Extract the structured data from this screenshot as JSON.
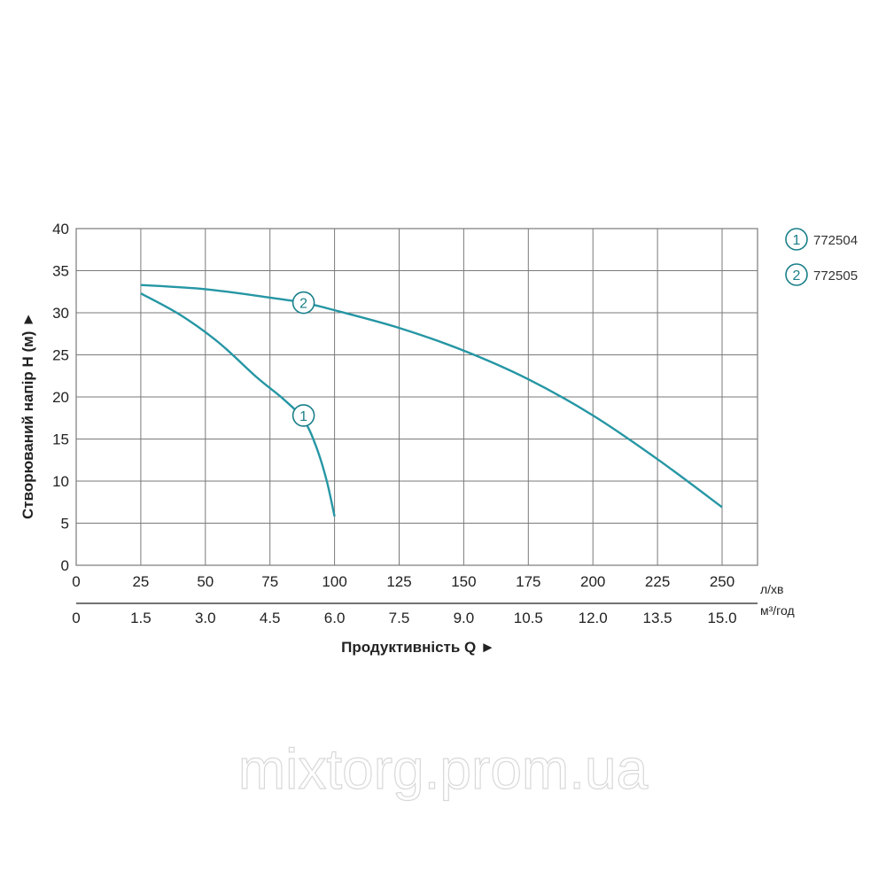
{
  "chart_data": {
    "type": "line",
    "ylabel": "Створюваний напір Н (м) ►",
    "xlabel": "Продуктивність Q ►",
    "x_unit_primary": "л/хв",
    "x_unit_secondary": "м³/год",
    "ylim": [
      0,
      40
    ],
    "xlim": [
      0,
      250
    ],
    "y_ticks": [
      "0",
      "5",
      "10",
      "15",
      "20",
      "25",
      "30",
      "35",
      "40"
    ],
    "y_tick_values": [
      0,
      5,
      10,
      15,
      20,
      25,
      30,
      35,
      40
    ],
    "x_ticks_primary": [
      "0",
      "25",
      "50",
      "75",
      "100",
      "125",
      "150",
      "175",
      "200",
      "225",
      "250"
    ],
    "x_tick_values": [
      0,
      25,
      50,
      75,
      100,
      125,
      150,
      175,
      200,
      225,
      250
    ],
    "x_ticks_secondary": [
      "0",
      "1.5",
      "3.0",
      "4.5",
      "6.0",
      "7.5",
      "9.0",
      "10.5",
      "12.0",
      "13.5",
      "15.0"
    ],
    "grid": true,
    "legend_position": "top-right",
    "series": [
      {
        "name": "772504",
        "marker": "1",
        "color": "#2596a4",
        "label_at": [
          88,
          17.8
        ],
        "x": [
          25,
          40,
          55,
          70,
          80,
          88,
          93,
          97,
          100
        ],
        "y": [
          32.3,
          29.8,
          26.5,
          22.3,
          19.8,
          17.3,
          14.0,
          10.0,
          5.8
        ]
      },
      {
        "name": "772505",
        "marker": "2",
        "color": "#2596a4",
        "label_at": [
          88,
          31.2
        ],
        "x": [
          25,
          50,
          75,
          88,
          100,
          125,
          150,
          175,
          200,
          225,
          250
        ],
        "y": [
          33.3,
          32.8,
          31.8,
          31.2,
          30.3,
          28.2,
          25.5,
          22.1,
          17.8,
          12.6,
          6.9
        ]
      }
    ]
  },
  "watermark": "mixtorg.prom.ua"
}
